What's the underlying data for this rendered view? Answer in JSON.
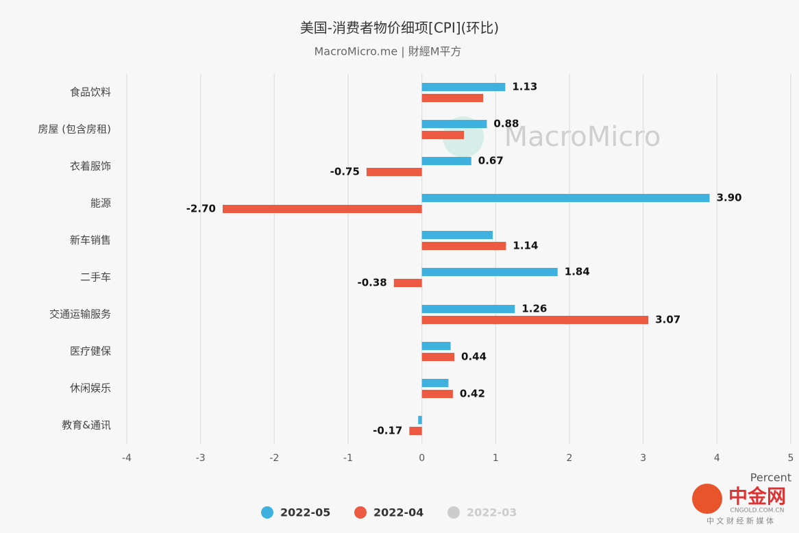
{
  "chart_data": {
    "type": "hbar",
    "title": "美国-消费者物价细项[CPI](环比)",
    "subtitle": "MacroMicro.me | 財經M平方",
    "x_label": "Percent",
    "watermark": "MacroMicro",
    "footer": {
      "logo": "中金网",
      "site": "CNGOLD.COM.CN",
      "slogan": "中 文 财 经 新 媒 体"
    },
    "categories": [
      "食品饮料",
      "房屋 (包含房租)",
      "衣着服饰",
      "能源",
      "新车销售",
      "二手车",
      "交通运输服务",
      "医疗健保",
      "休闲娱乐",
      "教育&通讯"
    ],
    "series": [
      {
        "name": "2022-05",
        "color": "#3eb1de",
        "visible": true,
        "values": [
          1.13,
          0.88,
          0.67,
          3.9,
          0.96,
          1.84,
          1.26,
          0.39,
          0.36,
          -0.05
        ],
        "value_labels": [
          "1.13",
          "0.88",
          "0.67",
          "3.90",
          null,
          "1.84",
          "1.26",
          null,
          null,
          null
        ]
      },
      {
        "name": "2022-04",
        "color": "#ec5a42",
        "visible": true,
        "values": [
          0.83,
          0.57,
          -0.75,
          -2.7,
          1.14,
          -0.38,
          3.07,
          0.44,
          0.42,
          -0.17
        ],
        "value_labels": [
          null,
          null,
          "-0.75",
          "-2.70",
          "1.14",
          "-0.38",
          "3.07",
          "0.44",
          "0.42",
          "-0.17"
        ]
      },
      {
        "name": "2022-03",
        "color": "#cccccc",
        "visible": false,
        "values": [
          null,
          null,
          null,
          null,
          null,
          null,
          null,
          null,
          null,
          null
        ]
      }
    ],
    "xlim": [
      -4,
      5
    ],
    "xticks": [
      -4,
      -3,
      -2,
      -1,
      0,
      1,
      2,
      3,
      4,
      5
    ],
    "grid": true
  }
}
